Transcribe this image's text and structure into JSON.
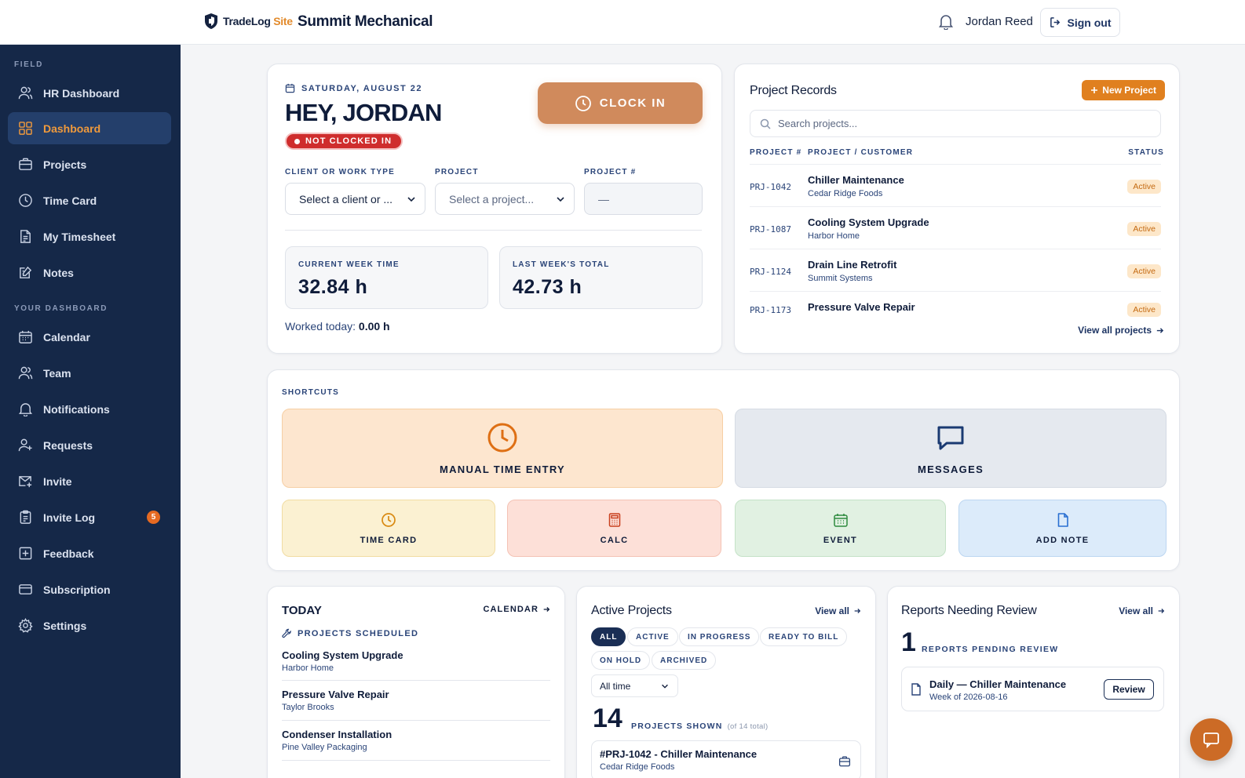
{
  "header": {
    "logo_main": "TradeLog",
    "logo_accent": "Site",
    "company": "Summit Mechanical",
    "user_name": "Jordan Reed",
    "signout_label": "Sign out"
  },
  "sidebar": {
    "section_field": "FIELD",
    "section_dashboard": "YOUR DASHBOARD",
    "items": [
      {
        "label": "HR Dashboard",
        "icon": "users-icon"
      },
      {
        "label": "Dashboard",
        "icon": "grid-icon",
        "active": true
      },
      {
        "label": "Projects",
        "icon": "briefcase-icon"
      },
      {
        "label": "Time Card",
        "icon": "clock-icon"
      },
      {
        "label": "My Timesheet",
        "icon": "timesheet-icon"
      },
      {
        "label": "Notes",
        "icon": "notes-icon"
      },
      {
        "label": "Calendar",
        "icon": "calendar-icon"
      },
      {
        "label": "Team",
        "icon": "team-icon"
      },
      {
        "label": "Notifications",
        "icon": "bell-icon"
      },
      {
        "label": "Requests",
        "icon": "user-plus-icon"
      },
      {
        "label": "Invite",
        "icon": "mail-icon"
      },
      {
        "label": "Invite Log",
        "icon": "clipboard-icon",
        "badge": "5"
      },
      {
        "label": "Feedback",
        "icon": "feedback-icon"
      },
      {
        "label": "Subscription",
        "icon": "card-icon"
      },
      {
        "label": "Settings",
        "icon": "gear-icon"
      }
    ]
  },
  "clock": {
    "date": "SATURDAY, AUGUST 22",
    "greeting": "HEY, JORDAN",
    "status": "NOT CLOCKED IN",
    "button": "CLOCK IN",
    "client_label": "CLIENT OR WORK TYPE",
    "client_value": "Select a client or ...",
    "project_label": "PROJECT",
    "project_value": "Select a project...",
    "projnum_label": "PROJECT #",
    "projnum_value": "—",
    "current_week_label": "CURRENT WEEK TIME",
    "current_week_value": "32.84 h",
    "last_week_label": "LAST WEEK'S TOTAL",
    "last_week_value": "42.73 h",
    "worked_label": "Worked today:",
    "worked_value": "0.00 h"
  },
  "records": {
    "title": "Project Records",
    "new_button": "New Project",
    "search_placeholder": "Search projects...",
    "col_num": "PROJECT #",
    "col_name": "PROJECT / CUSTOMER",
    "col_status": "STATUS",
    "rows": [
      {
        "num": "PRJ-1042",
        "name": "Chiller Maintenance",
        "customer": "Cedar Ridge Foods",
        "status": "Active"
      },
      {
        "num": "PRJ-1087",
        "name": "Cooling System Upgrade",
        "customer": "Harbor Home",
        "status": "Active"
      },
      {
        "num": "PRJ-1124",
        "name": "Drain Line Retrofit",
        "customer": "Summit Systems",
        "status": "Active"
      },
      {
        "num": "PRJ-1173",
        "name": "Pressure Valve Repair",
        "customer": "",
        "status": "Active"
      }
    ],
    "view_all": "View all projects"
  },
  "shortcuts": {
    "label": "SHORTCUTS",
    "manual": "MANUAL TIME ENTRY",
    "messages": "MESSAGES",
    "timecard": "TIME CARD",
    "calc": "CALC",
    "event": "EVENT",
    "addnote": "ADD NOTE"
  },
  "today": {
    "title": "TODAY",
    "calendar_link": "CALENDAR",
    "scheduled_label": "PROJECTS SCHEDULED",
    "items": [
      {
        "name": "Cooling System Upgrade",
        "customer": "Harbor Home"
      },
      {
        "name": "Pressure Valve Repair",
        "customer": "Taylor Brooks"
      },
      {
        "name": "Condenser Installation",
        "customer": "Pine Valley Packaging"
      }
    ]
  },
  "active": {
    "title": "Active Projects",
    "view_all": "View all",
    "chips": [
      "ALL",
      "ACTIVE",
      "IN PROGRESS",
      "READY TO BILL",
      "ON HOLD",
      "ARCHIVED"
    ],
    "range": "All time",
    "count": "14",
    "count_label": "PROJECTS SHOWN",
    "count_sub": "(of 14 total)",
    "item_name": "#PRJ-1042 - Chiller Maintenance",
    "item_customer": "Cedar Ridge Foods"
  },
  "review": {
    "title": "Reports Needing Review",
    "view_all": "View all",
    "count": "1",
    "count_label": "REPORTS PENDING REVIEW",
    "item_name": "Daily — Chiller Maintenance",
    "item_sub": "Week of 2026-08-16",
    "button": "Review"
  },
  "colors": {
    "sidebar": "#152848",
    "accent": "#e0801f",
    "danger": "#cf2d2d"
  }
}
